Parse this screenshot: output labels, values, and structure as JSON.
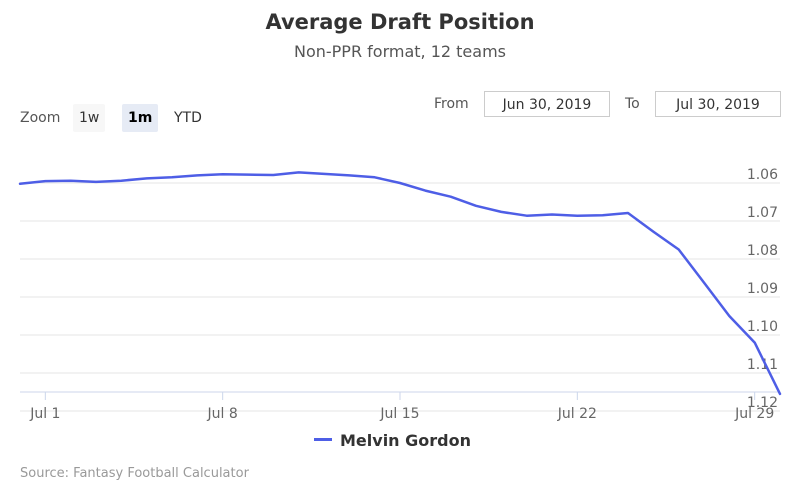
{
  "header": {
    "title": "Average Draft Position",
    "subtitle": "Non-PPR format, 12 teams"
  },
  "range_selector": {
    "zoom_label": "Zoom",
    "buttons": [
      "1w",
      "1m",
      "YTD"
    ],
    "active_button": "1m",
    "from_label": "From",
    "from_value": "Jun 30, 2019",
    "to_label": "To",
    "to_value": "Jul 30, 2019"
  },
  "credits": "Source: Fantasy Football Calculator",
  "colors": {
    "series": "#4e5ee6",
    "grid": "#e6e6e6",
    "axis": "#ccd6eb"
  },
  "chart_data": {
    "type": "line",
    "title": "Average Draft Position",
    "subtitle": "Non-PPR format, 12 teams",
    "y_reversed": true,
    "ylim": [
      1.05,
      1.115
    ],
    "y_ticks": [
      1.06,
      1.07,
      1.08,
      1.09,
      1.1,
      1.11,
      1.12
    ],
    "y_tick_labels": [
      "1.06",
      "1.07",
      "1.08",
      "1.09",
      "1.10",
      "1.11",
      "1.12"
    ],
    "x_range": [
      "2019-06-30",
      "2019-07-30"
    ],
    "x_ticks": [
      "2019-07-01",
      "2019-07-08",
      "2019-07-15",
      "2019-07-22",
      "2019-07-29"
    ],
    "x_tick_labels": [
      "Jul 1",
      "Jul 8",
      "Jul 15",
      "Jul 22",
      "Jul 29"
    ],
    "legend": "bottom-center",
    "grid": true,
    "series": [
      {
        "name": "Melvin Gordon",
        "x": [
          "2019-06-30",
          "2019-07-01",
          "2019-07-02",
          "2019-07-03",
          "2019-07-04",
          "2019-07-05",
          "2019-07-06",
          "2019-07-07",
          "2019-07-08",
          "2019-07-09",
          "2019-07-10",
          "2019-07-11",
          "2019-07-12",
          "2019-07-13",
          "2019-07-14",
          "2019-07-15",
          "2019-07-16",
          "2019-07-17",
          "2019-07-18",
          "2019-07-19",
          "2019-07-20",
          "2019-07-21",
          "2019-07-22",
          "2019-07-23",
          "2019-07-24",
          "2019-07-25",
          "2019-07-26",
          "2019-07-27",
          "2019-07-28",
          "2019-07-29",
          "2019-07-30"
        ],
        "values": [
          1.0602,
          1.0595,
          1.0594,
          1.0597,
          1.0594,
          1.0588,
          1.0585,
          1.058,
          1.0577,
          1.0578,
          1.0579,
          1.0572,
          1.0576,
          1.058,
          1.0585,
          1.06,
          1.062,
          1.0636,
          1.066,
          1.0676,
          1.0686,
          1.0683,
          1.0686,
          1.0685,
          1.0679,
          1.0728,
          1.0775,
          1.0862,
          1.095,
          1.102,
          1.1155
        ]
      }
    ]
  }
}
